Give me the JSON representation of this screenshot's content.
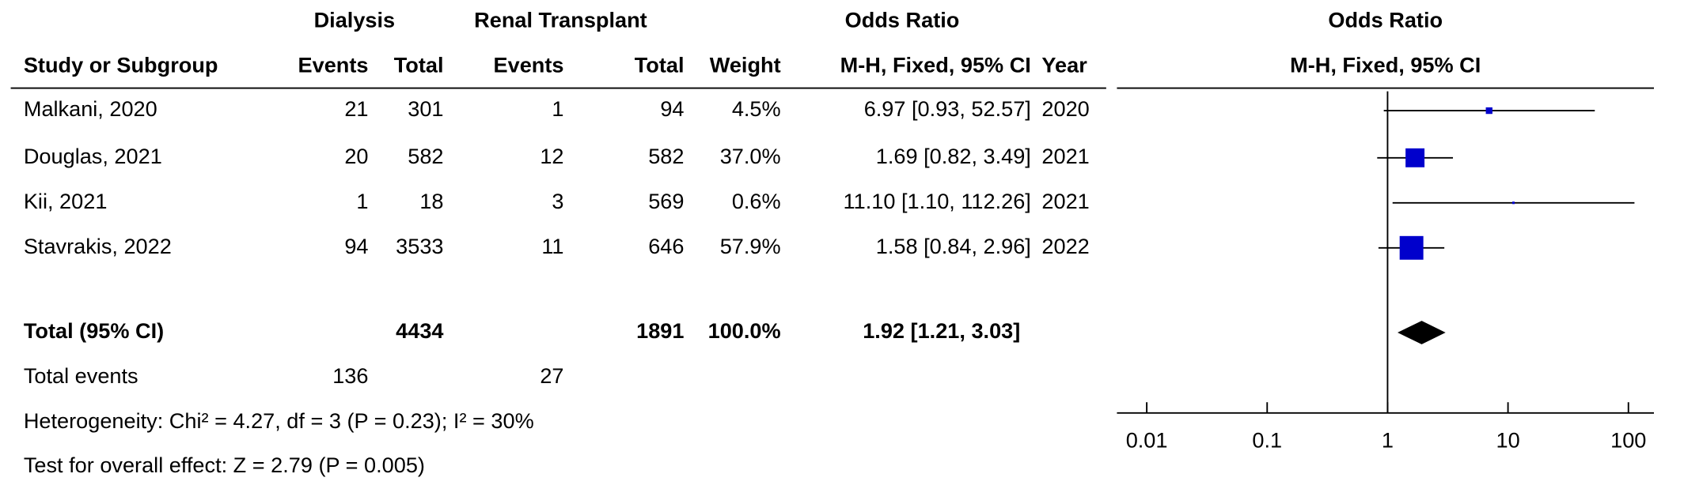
{
  "chart_data": {
    "type": "forest",
    "group_headers": {
      "experimental": "Dialysis",
      "control": "Renal Transplant",
      "effect": "Odds Ratio",
      "plot": "Odds Ratio"
    },
    "columns": {
      "study": "Study or Subgroup",
      "events_e": "Events",
      "total_e": "Total",
      "events_c": "Events",
      "total_c": "Total",
      "weight": "Weight",
      "effect": "M-H, Fixed, 95% CI",
      "year": "Year",
      "plot": "M-H, Fixed, 95% CI"
    },
    "studies": [
      {
        "name": "Malkani, 2020",
        "events_e": 21,
        "total_e": 301,
        "events_c": 1,
        "total_c": 94,
        "weight": 4.5,
        "weight_label": "4.5%",
        "or": 6.97,
        "lower": 0.93,
        "upper": 52.57,
        "ci_label": "6.97 [0.93, 52.57]",
        "year": 2020
      },
      {
        "name": "Douglas, 2021",
        "events_e": 20,
        "total_e": 582,
        "events_c": 12,
        "total_c": 582,
        "weight": 37.0,
        "weight_label": "37.0%",
        "or": 1.69,
        "lower": 0.82,
        "upper": 3.49,
        "ci_label": "1.69 [0.82, 3.49]",
        "year": 2021
      },
      {
        "name": "Kii, 2021",
        "events_e": 1,
        "total_e": 18,
        "events_c": 3,
        "total_c": 569,
        "weight": 0.6,
        "weight_label": "0.6%",
        "or": 11.1,
        "lower": 1.1,
        "upper": 112.26,
        "ci_label": "11.10 [1.10, 112.26]",
        "year": 2021
      },
      {
        "name": "Stavrakis, 2022",
        "events_e": 94,
        "total_e": 3533,
        "events_c": 11,
        "total_c": 646,
        "weight": 57.9,
        "weight_label": "57.9%",
        "or": 1.58,
        "lower": 0.84,
        "upper": 2.96,
        "ci_label": "1.58 [0.84, 2.96]",
        "year": 2022
      }
    ],
    "total": {
      "label": "Total (95% CI)",
      "total_e": 4434,
      "total_c": 1891,
      "weight": 100.0,
      "weight_label": "100.0%",
      "or": 1.92,
      "lower": 1.21,
      "upper": 3.03,
      "ci_label": "1.92 [1.21, 3.03]"
    },
    "total_events": {
      "label": "Total events",
      "events_e": 136,
      "events_c": 27
    },
    "heterogeneity": "Heterogeneity: Chi² = 4.27, df = 3 (P = 0.23); I² = 30%",
    "overall_effect": "Test for overall effect: Z = 2.79 (P = 0.005)",
    "xlim": [
      0.005,
      200
    ],
    "xticks": [
      0.01,
      0.1,
      1,
      10,
      100
    ],
    "log_x": true,
    "null_line": 1,
    "color": "#0000cc"
  }
}
